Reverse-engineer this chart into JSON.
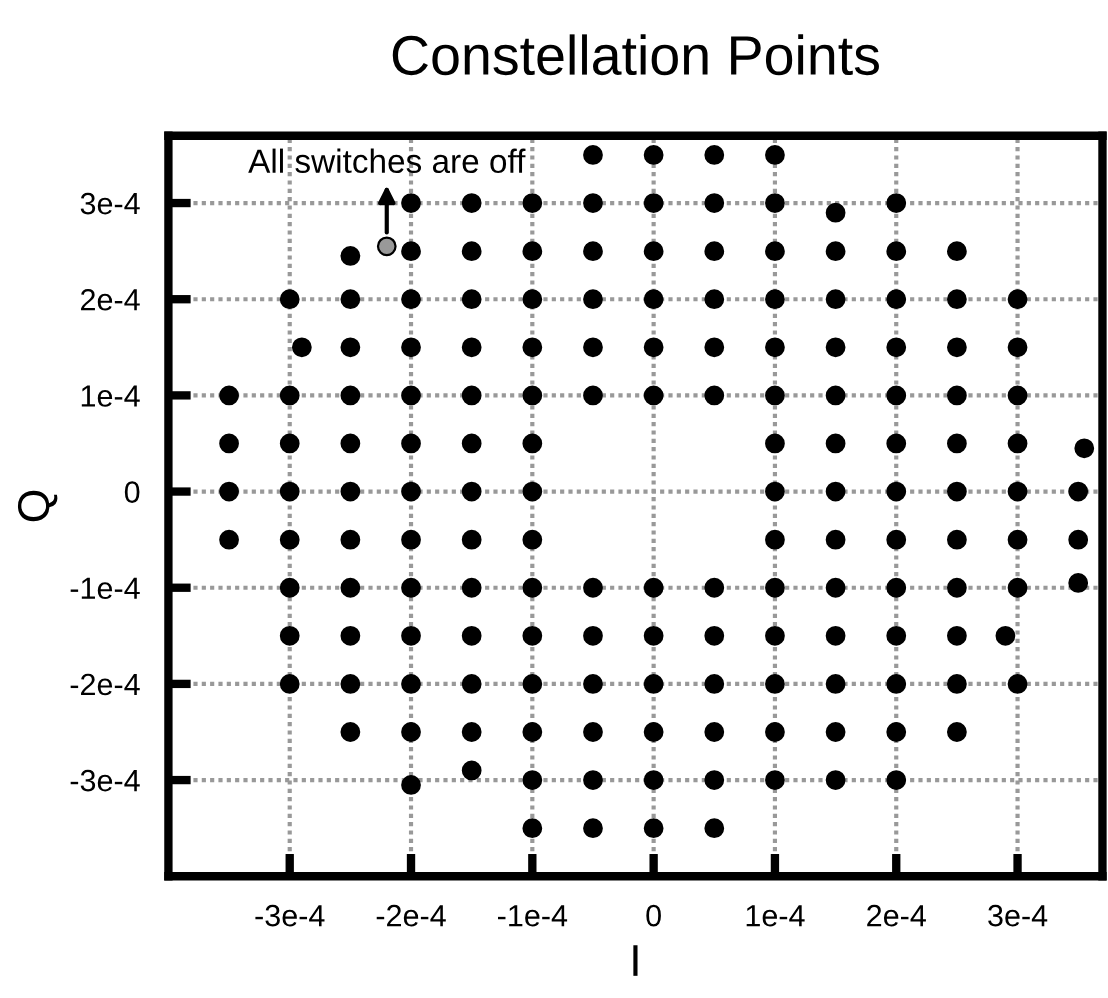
{
  "chart_data": {
    "type": "scatter",
    "title": "Constellation Points",
    "xlabel": "I",
    "ylabel": "Q",
    "xlim": [
      -0.0004,
      0.00037
    ],
    "ylim": [
      -0.0004,
      0.00037
    ],
    "xticks": [
      {
        "value": -0.0003,
        "label": "-3e-4"
      },
      {
        "value": -0.0002,
        "label": "-2e-4"
      },
      {
        "value": -0.0001,
        "label": "-1e-4"
      },
      0,
      {
        "value": 0.0001,
        "label": "1e-4"
      },
      {
        "value": 0.0002,
        "label": "2e-4"
      },
      {
        "value": 0.0003,
        "label": "3e-4"
      }
    ],
    "yticks": [
      {
        "value": -0.0003,
        "label": "-3e-4"
      },
      {
        "value": -0.0002,
        "label": "-2e-4"
      },
      {
        "value": -0.0001,
        "label": "-1e-4"
      },
      0,
      {
        "value": 0.0001,
        "label": "1e-4"
      },
      {
        "value": 0.0002,
        "label": "2e-4"
      },
      {
        "value": 0.0003,
        "label": "3e-4"
      }
    ],
    "grid": true,
    "legend": false,
    "marker": "circle",
    "series": [
      {
        "color": "#000000",
        "x": [
          -5e-05,
          0,
          5e-05,
          0.0001,
          -0.0002,
          -0.00015,
          -0.0001,
          -5e-05,
          0,
          5e-05,
          0.0001,
          0.00015,
          0.0002,
          -0.00025,
          -0.0002,
          -0.00015,
          -0.0001,
          -5e-05,
          0,
          5e-05,
          0.0001,
          0.00015,
          0.0002,
          0.00025,
          -0.0003,
          -0.00025,
          -0.0002,
          -0.00015,
          -0.0001,
          -5e-05,
          0,
          5e-05,
          0.0001,
          0.00015,
          0.0002,
          0.00025,
          0.0003,
          -0.00029,
          -0.00025,
          -0.0002,
          -0.00015,
          -0.0001,
          -5e-05,
          0,
          5e-05,
          0.0001,
          0.00015,
          0.0002,
          0.00025,
          0.0003,
          -0.00035,
          -0.0003,
          -0.00025,
          -0.0002,
          -0.00015,
          -0.0001,
          -5e-05,
          0,
          5e-05,
          0.0001,
          0.00015,
          0.0002,
          0.00025,
          0.0003,
          -0.00035,
          -0.0003,
          -0.00025,
          -0.0002,
          -0.00015,
          -0.0001,
          0.0001,
          0.00015,
          0.0002,
          0.00025,
          0.0003,
          0.000355,
          -0.00035,
          -0.0003,
          -0.00025,
          -0.0002,
          -0.00015,
          -0.0001,
          0.0001,
          0.00015,
          0.0002,
          0.00025,
          0.0003,
          0.00035,
          -0.00035,
          -0.0003,
          -0.00025,
          -0.0002,
          -0.00015,
          -0.0001,
          0.0001,
          0.00015,
          0.0002,
          0.00025,
          0.0003,
          0.00035,
          -0.0003,
          -0.00025,
          -0.0002,
          -0.00015,
          -0.0001,
          -5e-05,
          0,
          5e-05,
          0.0001,
          0.00015,
          0.0002,
          0.00025,
          0.0003,
          0.00035,
          -0.0003,
          -0.00025,
          -0.0002,
          -0.00015,
          -0.0001,
          -5e-05,
          0,
          5e-05,
          0.0001,
          0.00015,
          0.0002,
          0.00025,
          0.00029,
          -0.0003,
          -0.00025,
          -0.0002,
          -0.00015,
          -0.0001,
          -5e-05,
          0,
          5e-05,
          0.0001,
          0.00015,
          0.0002,
          0.00025,
          0.0003,
          -0.00025,
          -0.0002,
          -0.00015,
          -0.0001,
          -5e-05,
          0,
          5e-05,
          0.0001,
          0.00015,
          0.0002,
          0.00025,
          -0.0002,
          -0.00015,
          -0.0001,
          -5e-05,
          0,
          5e-05,
          0.0001,
          0.00015,
          0.0002,
          -0.0001,
          -5e-05,
          0,
          5e-05
        ],
        "values": [
          0.00035,
          0.00035,
          0.00035,
          0.00035,
          0.0003,
          0.0003,
          0.0003,
          0.0003,
          0.0003,
          0.0003,
          0.0003,
          0.00029,
          0.0003,
          0.000245,
          0.00025,
          0.00025,
          0.00025,
          0.00025,
          0.00025,
          0.00025,
          0.00025,
          0.00025,
          0.00025,
          0.00025,
          0.0002,
          0.0002,
          0.0002,
          0.0002,
          0.0002,
          0.0002,
          0.0002,
          0.0002,
          0.0002,
          0.0002,
          0.0002,
          0.0002,
          0.0002,
          0.00015,
          0.00015,
          0.00015,
          0.00015,
          0.00015,
          0.00015,
          0.00015,
          0.00015,
          0.00015,
          0.00015,
          0.00015,
          0.00015,
          0.00015,
          0.0001,
          0.0001,
          0.0001,
          0.0001,
          0.0001,
          0.0001,
          0.0001,
          0.0001,
          0.0001,
          0.0001,
          0.0001,
          0.0001,
          0.0001,
          0.0001,
          5e-05,
          5e-05,
          5e-05,
          5e-05,
          5e-05,
          5e-05,
          5e-05,
          5e-05,
          5e-05,
          5e-05,
          5e-05,
          4.5e-05,
          0,
          0,
          0,
          0,
          0,
          0,
          0,
          0,
          0,
          0,
          0,
          0,
          -5e-05,
          -5e-05,
          -5e-05,
          -5e-05,
          -5e-05,
          -5e-05,
          -5e-05,
          -5e-05,
          -5e-05,
          -5e-05,
          -5e-05,
          -5e-05,
          -0.0001,
          -0.0001,
          -0.0001,
          -0.0001,
          -0.0001,
          -0.0001,
          -0.0001,
          -0.0001,
          -0.0001,
          -0.0001,
          -0.0001,
          -0.0001,
          -0.0001,
          -9.5e-05,
          -0.00015,
          -0.00015,
          -0.00015,
          -0.00015,
          -0.00015,
          -0.00015,
          -0.00015,
          -0.00015,
          -0.00015,
          -0.00015,
          -0.00015,
          -0.00015,
          -0.00015,
          -0.0002,
          -0.0002,
          -0.0002,
          -0.0002,
          -0.0002,
          -0.0002,
          -0.0002,
          -0.0002,
          -0.0002,
          -0.0002,
          -0.0002,
          -0.0002,
          -0.0002,
          -0.00025,
          -0.00025,
          -0.00025,
          -0.00025,
          -0.00025,
          -0.00025,
          -0.00025,
          -0.00025,
          -0.00025,
          -0.00025,
          -0.00025,
          -0.000305,
          -0.00029,
          -0.0003,
          -0.0003,
          -0.0003,
          -0.0003,
          -0.0003,
          -0.0003,
          -0.0003,
          -0.00035,
          -0.00035,
          -0.00035,
          -0.00035
        ]
      },
      {
        "color": "#999999",
        "x": [
          -0.00022
        ],
        "values": [
          0.000255
        ]
      }
    ],
    "annotations": [
      {
        "text": "All switches are off",
        "x": -0.00022,
        "y": 0.000255
      }
    ]
  }
}
